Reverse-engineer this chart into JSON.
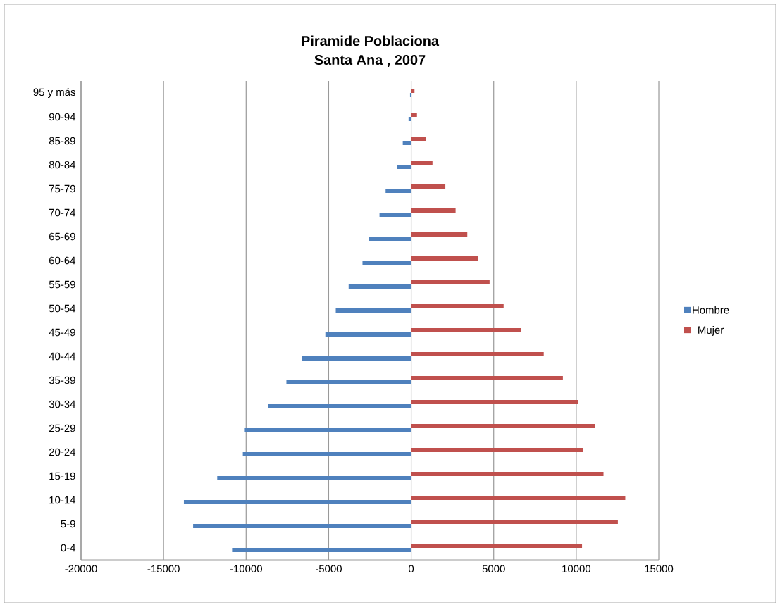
{
  "chart_data": {
    "type": "bar",
    "orientation": "horizontal",
    "title": "Piramide Poblaciona",
    "subtitle": "Santa Ana , 2007",
    "categories": [
      "95 y más",
      "90-94",
      "85-89",
      "80-84",
      "75-79",
      "70-74",
      "65-69",
      "60-64",
      "55-59",
      "50-54",
      "45-49",
      "40-44",
      "35-39",
      "30-34",
      "25-29",
      "20-24",
      "15-19",
      "10-14",
      "5-9",
      "0-4"
    ],
    "series": [
      {
        "name": "Hombre",
        "color": "#4f81bd",
        "values": [
          -70,
          -160,
          -510,
          -850,
          -1550,
          -1920,
          -2550,
          -2950,
          -3790,
          -4570,
          -5200,
          -6640,
          -7560,
          -8680,
          -10080,
          -10200,
          -11750,
          -13770,
          -13210,
          -10850
        ]
      },
      {
        "name": "Mujer",
        "color": "#c0504d",
        "values": [
          200,
          350,
          880,
          1290,
          2070,
          2690,
          3400,
          4030,
          4750,
          5600,
          6650,
          8030,
          9190,
          10120,
          11130,
          10400,
          11650,
          12970,
          12520,
          10350
        ]
      }
    ],
    "xlim": [
      -20000,
      15000
    ],
    "xticks": [
      -20000,
      -15000,
      -10000,
      -5000,
      0,
      5000,
      10000,
      15000
    ],
    "grid": "x",
    "legend": "right"
  }
}
